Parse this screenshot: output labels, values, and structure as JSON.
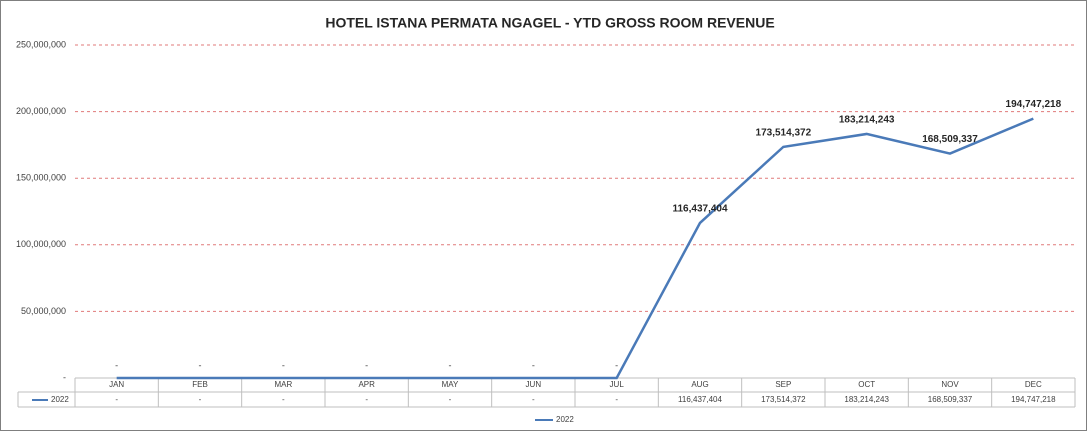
{
  "chart_data": {
    "type": "line",
    "title": "HOTEL ISTANA PERMATA NGAGEL - YTD GROSS ROOM REVENUE",
    "categories": [
      "JAN",
      "FEB",
      "MAR",
      "APR",
      "MAY",
      "JUN",
      "JUL",
      "AUG",
      "SEP",
      "OCT",
      "NOV",
      "DEC"
    ],
    "series": [
      {
        "name": "2022",
        "color": "#4a7ab8",
        "values": [
          0,
          0,
          0,
          0,
          0,
          0,
          0,
          116437404,
          173514372,
          183214243,
          168509337,
          194747218
        ],
        "value_labels": [
          "-",
          "-",
          "-",
          "-",
          "-",
          "-",
          "-",
          "116,437,404",
          "173,514,372",
          "183,214,243",
          "168,509,337",
          "194,747,218"
        ]
      }
    ],
    "ylim": [
      0,
      250000000
    ],
    "yticks": [
      {
        "value": 0,
        "label": "-"
      },
      {
        "value": 50000000,
        "label": "50,000,000"
      },
      {
        "value": 100000000,
        "label": "100,000,000"
      },
      {
        "value": 150000000,
        "label": "150,000,000"
      },
      {
        "value": 200000000,
        "label": "200,000,000"
      },
      {
        "value": 250000000,
        "label": "250,000,000"
      }
    ],
    "grid": true,
    "legend": "bottom",
    "data_table": true
  }
}
